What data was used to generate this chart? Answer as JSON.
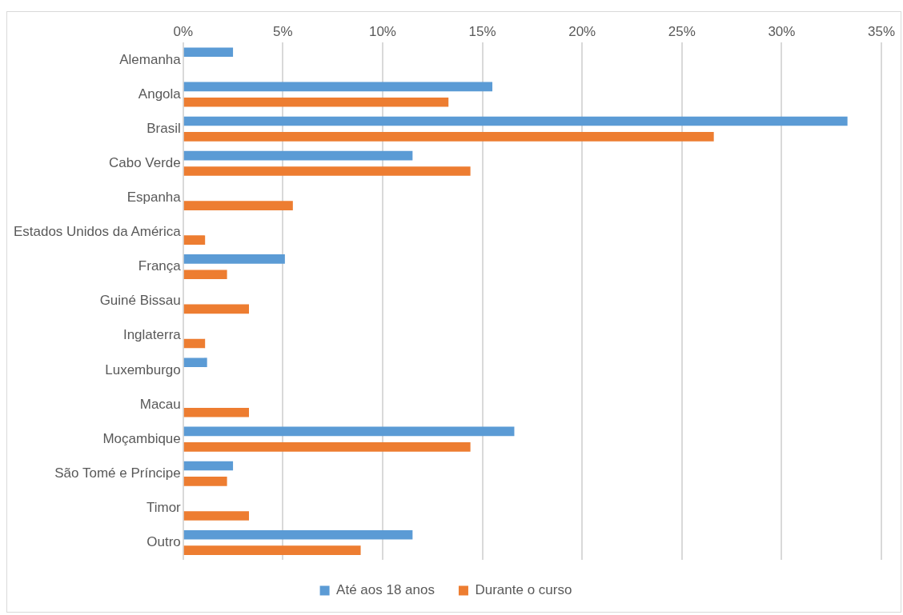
{
  "chart_data": {
    "type": "bar",
    "orientation": "horizontal",
    "categories": [
      "Alemanha",
      "Angola",
      "Brasil",
      "Cabo Verde",
      "Espanha",
      "Estados Unidos da América",
      "França",
      "Guiné Bissau",
      "Inglaterra",
      "Luxemburgo",
      "Macau",
      "Moçambique",
      "São Tomé e Príncipe",
      "Timor",
      "Outro"
    ],
    "series": [
      {
        "name": "Até aos 18 anos",
        "color": "#5b9bd5",
        "values": [
          2.5,
          15.5,
          33.3,
          11.5,
          null,
          null,
          5.1,
          null,
          null,
          1.2,
          null,
          16.6,
          2.5,
          null,
          11.5
        ]
      },
      {
        "name": "Durante o curso",
        "color": "#ed7d31",
        "values": [
          null,
          13.3,
          26.6,
          14.4,
          5.5,
          1.1,
          2.2,
          3.3,
          1.1,
          null,
          3.3,
          14.4,
          2.2,
          3.3,
          8.9
        ]
      }
    ],
    "xlim": [
      0,
      35
    ],
    "xticks": [
      {
        "value": 0,
        "label": "0%"
      },
      {
        "value": 5,
        "label": "5%"
      },
      {
        "value": 10,
        "label": "10%"
      },
      {
        "value": 15,
        "label": "15%"
      },
      {
        "value": 20,
        "label": "20%"
      },
      {
        "value": 25,
        "label": "25%"
      },
      {
        "value": 30,
        "label": "30%"
      },
      {
        "value": 35,
        "label": "35%"
      }
    ],
    "grid": "x",
    "legend": "bottom"
  }
}
